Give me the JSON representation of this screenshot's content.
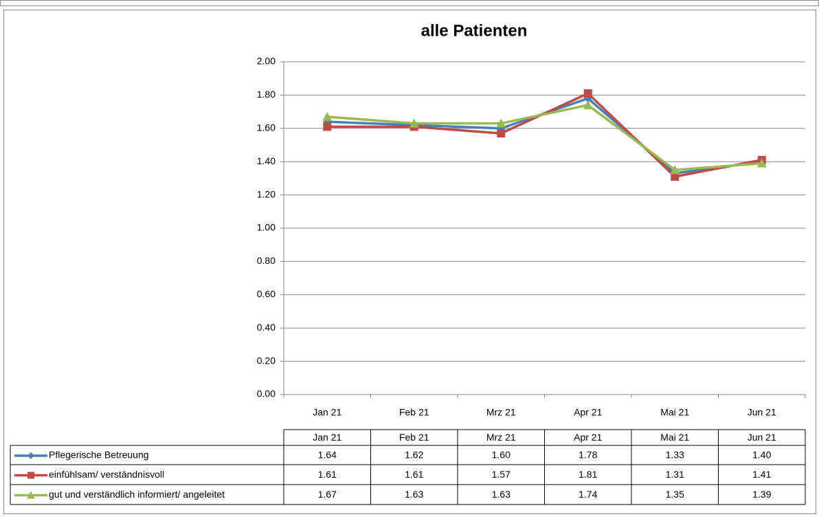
{
  "chart_data": {
    "type": "line",
    "title": "alle Patienten",
    "categories": [
      "Jan 21",
      "Feb 21",
      "Mrz 21",
      "Apr 21",
      "Mai 21",
      "Jun 21"
    ],
    "series": [
      {
        "name": "Pflegerische Betreuung",
        "color": "#4a7ebb",
        "marker": "diamond",
        "values": [
          1.64,
          1.62,
          1.6,
          1.78,
          1.33,
          1.4
        ],
        "value_labels": [
          "1.64",
          "1.62",
          "1.60",
          "1.78",
          "1.33",
          "1.40"
        ]
      },
      {
        "name": "einfühlsam/ verständnisvoll",
        "color": "#be4b48",
        "marker": "square",
        "values": [
          1.61,
          1.61,
          1.57,
          1.81,
          1.31,
          1.41
        ],
        "value_labels": [
          "1.61",
          "1.61",
          "1.57",
          "1.81",
          "1.31",
          "1.41"
        ]
      },
      {
        "name": "gut und verständlich informiert/ angeleitet",
        "color": "#98b954",
        "marker": "triangle",
        "values": [
          1.67,
          1.63,
          1.63,
          1.74,
          1.35,
          1.39
        ],
        "value_labels": [
          "1.67",
          "1.63",
          "1.63",
          "1.74",
          "1.35",
          "1.39"
        ]
      }
    ],
    "ylim": [
      0,
      2
    ],
    "yticks": [
      {
        "value": 0,
        "label": "0.00"
      },
      {
        "value": 0.2,
        "label": "0.20"
      },
      {
        "value": 0.4,
        "label": "0.40"
      },
      {
        "value": 0.6,
        "label": "0.60"
      },
      {
        "value": 0.8,
        "label": "0.80"
      },
      {
        "value": 1,
        "label": "1.00"
      },
      {
        "value": 1.2,
        "label": "1.20"
      },
      {
        "value": 1.4,
        "label": "1.40"
      },
      {
        "value": 1.6,
        "label": "1.60"
      },
      {
        "value": 1.8,
        "label": "1.80"
      },
      {
        "value": 2,
        "label": "2.00"
      }
    ],
    "grid": true
  }
}
